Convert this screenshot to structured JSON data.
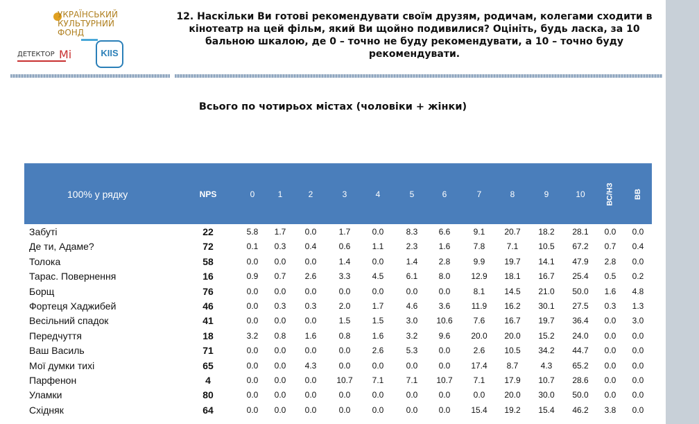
{
  "logos": {
    "ukf_text": "УКРАЇНСЬКИЙ КУЛЬТУРНИЙ ФОНД",
    "detector_text": "ДЕТЕКТОР",
    "detector_mi": "Mi",
    "kiis_text": "KIIS"
  },
  "question": "12. Наскільки Ви готові рекомендувати своїм друзям, родичам, колегами сходити в кінотеатр на цей фільм, який Ви щойно подивилися? Оцініть, будь ласка, за 10 бальною шкалою, де 0 – точно не буду рекомендувати, а 10 – точно буду рекомендувати.",
  "subtitle": "Всього по чотирьох містах (чоловіки + жінки)",
  "table": {
    "corner_label": "100% у рядку",
    "columns": [
      "NPS",
      "0",
      "1",
      "2",
      "3",
      "4",
      "5",
      "6",
      "7",
      "8",
      "9",
      "10",
      "ВС/НЗ",
      "ВВ"
    ],
    "rows": [
      {
        "name": "Забуті",
        "values": [
          "22",
          "5.8",
          "1.7",
          "0.0",
          "1.7",
          "0.0",
          "8.3",
          "6.6",
          "9.1",
          "20.7",
          "18.2",
          "28.1",
          "0.0",
          "0.0"
        ]
      },
      {
        "name": "Де ти, Адаме?",
        "values": [
          "72",
          "0.1",
          "0.3",
          "0.4",
          "0.6",
          "1.1",
          "2.3",
          "1.6",
          "7.8",
          "7.1",
          "10.5",
          "67.2",
          "0.7",
          "0.4"
        ]
      },
      {
        "name": "Толока",
        "values": [
          "58",
          "0.0",
          "0.0",
          "0.0",
          "1.4",
          "0.0",
          "1.4",
          "2.8",
          "9.9",
          "19.7",
          "14.1",
          "47.9",
          "2.8",
          "0.0"
        ]
      },
      {
        "name": "Тарас. Повернення",
        "values": [
          "16",
          "0.9",
          "0.7",
          "2.6",
          "3.3",
          "4.5",
          "6.1",
          "8.0",
          "12.9",
          "18.1",
          "16.7",
          "25.4",
          "0.5",
          "0.2"
        ]
      },
      {
        "name": "Борщ",
        "values": [
          "76",
          "0.0",
          "0.0",
          "0.0",
          "0.0",
          "0.0",
          "0.0",
          "0.0",
          "8.1",
          "14.5",
          "21.0",
          "50.0",
          "1.6",
          "4.8"
        ]
      },
      {
        "name": "Фортеця Хаджибей",
        "values": [
          "46",
          "0.0",
          "0.3",
          "0.3",
          "2.0",
          "1.7",
          "4.6",
          "3.6",
          "11.9",
          "16.2",
          "30.1",
          "27.5",
          "0.3",
          "1.3"
        ]
      },
      {
        "name": "Весільний спадок",
        "values": [
          "41",
          "0.0",
          "0.0",
          "0.0",
          "1.5",
          "1.5",
          "3.0",
          "10.6",
          "7.6",
          "16.7",
          "19.7",
          "36.4",
          "0.0",
          "3.0"
        ]
      },
      {
        "name": "Передчуття",
        "values": [
          "18",
          "3.2",
          "0.8",
          "1.6",
          "0.8",
          "1.6",
          "3.2",
          "9.6",
          "20.0",
          "20.0",
          "15.2",
          "24.0",
          "0.0",
          "0.0"
        ]
      },
      {
        "name": "Ваш Василь",
        "values": [
          "71",
          "0.0",
          "0.0",
          "0.0",
          "0.0",
          "2.6",
          "5.3",
          "0.0",
          "2.6",
          "10.5",
          "34.2",
          "44.7",
          "0.0",
          "0.0"
        ]
      },
      {
        "name": "Мої думки тихі",
        "values": [
          "65",
          "0.0",
          "0.0",
          "4.3",
          "0.0",
          "0.0",
          "0.0",
          "0.0",
          "17.4",
          "8.7",
          "4.3",
          "65.2",
          "0.0",
          "0.0"
        ]
      },
      {
        "name": "Парфенон",
        "values": [
          "4",
          "0.0",
          "0.0",
          "0.0",
          "10.7",
          "7.1",
          "7.1",
          "10.7",
          "7.1",
          "17.9",
          "10.7",
          "28.6",
          "0.0",
          "0.0"
        ]
      },
      {
        "name": "Уламки",
        "values": [
          "80",
          "0.0",
          "0.0",
          "0.0",
          "0.0",
          "0.0",
          "0.0",
          "0.0",
          "0.0",
          "20.0",
          "30.0",
          "50.0",
          "0.0",
          "0.0"
        ]
      },
      {
        "name": "Східняк",
        "values": [
          "64",
          "0.0",
          "0.0",
          "0.0",
          "0.0",
          "0.0",
          "0.0",
          "0.0",
          "15.4",
          "19.2",
          "15.4",
          "46.2",
          "3.8",
          "0.0"
        ]
      }
    ]
  }
}
